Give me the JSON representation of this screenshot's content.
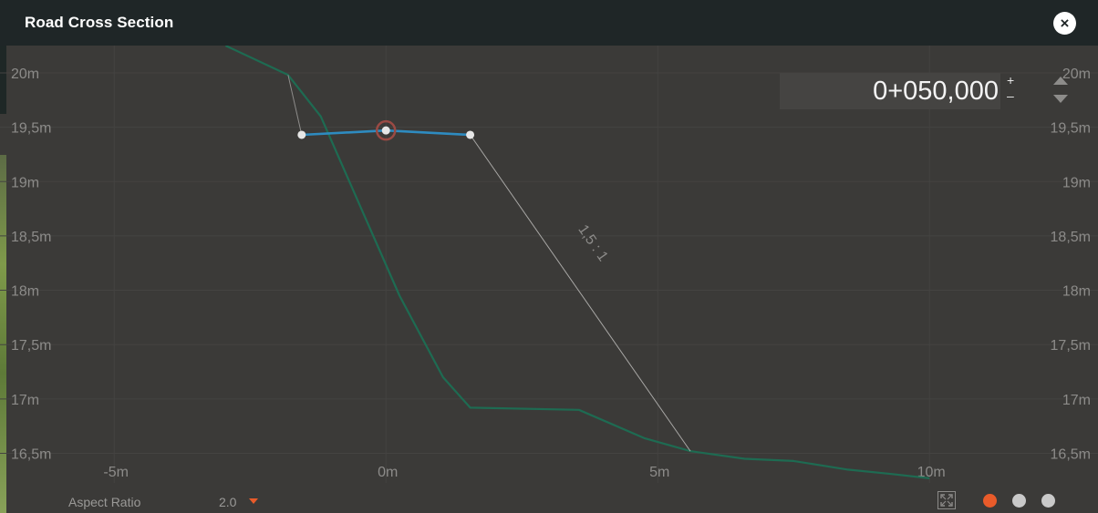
{
  "window": {
    "title": "Road Cross Section",
    "close_label": "×"
  },
  "station": {
    "value": "0+050,000",
    "plus": "+",
    "minus": "–"
  },
  "chart_data": {
    "type": "line",
    "title": "",
    "y_ticks": [
      "20m",
      "19,5m",
      "19m",
      "18,5m",
      "18m",
      "17,5m",
      "17m",
      "16,5m"
    ],
    "x_ticks": [
      "-5m",
      "0m",
      "5m",
      "10m"
    ],
    "xlim": [
      -7.0,
      13.0
    ],
    "ylim": [
      16.4,
      20.25
    ],
    "grid": true,
    "series": [
      {
        "color": "#1e6b52",
        "points": [
          [
            -2.95,
            20.25
          ],
          [
            -1.8,
            19.98
          ],
          [
            -1.2,
            19.6
          ],
          [
            0.25,
            17.95
          ],
          [
            1.05,
            17.2
          ],
          [
            1.55,
            16.92
          ],
          [
            3.55,
            16.9
          ],
          [
            4.75,
            16.64
          ],
          [
            5.6,
            16.52
          ],
          [
            6.6,
            16.45
          ],
          [
            7.5,
            16.43
          ],
          [
            8.5,
            16.35
          ],
          [
            9.3,
            16.31
          ],
          [
            10.0,
            16.27
          ]
        ]
      },
      {
        "color": "#2e8bc0",
        "points": [
          [
            -1.55,
            19.43
          ],
          [
            0.0,
            19.47
          ],
          [
            1.55,
            19.43
          ]
        ]
      },
      {
        "color": "#8e8d8b",
        "points": [
          [
            -1.55,
            19.43
          ],
          [
            -1.8,
            19.98
          ]
        ]
      },
      {
        "color": "#a9a8a6",
        "points": [
          [
            1.55,
            19.43
          ],
          [
            5.6,
            16.52
          ]
        ]
      }
    ],
    "vertices": [
      [
        -1.55,
        19.43
      ],
      [
        0.0,
        19.47
      ],
      [
        1.55,
        19.43
      ]
    ],
    "selected_vertex": [
      0.0,
      19.47
    ],
    "slope_label": "1,5 : 1"
  },
  "footer": {
    "aspect_label": "Aspect Ratio",
    "aspect_value": "2.0",
    "dots": [
      {
        "name": "dot-1",
        "color": "#e95b2a"
      },
      {
        "name": "dot-2",
        "color": "#c9c9c9"
      },
      {
        "name": "dot-3",
        "color": "#c9c9c9"
      }
    ]
  }
}
